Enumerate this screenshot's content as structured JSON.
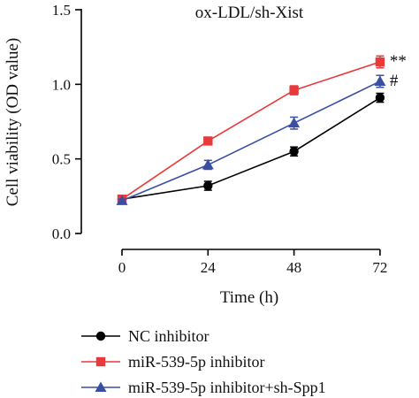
{
  "chart_data": {
    "type": "line",
    "title": "ox-LDL/sh-Xist",
    "xlabel": "Time (h)",
    "ylabel": "Cell viability (OD value)",
    "categories": [
      "0",
      "24",
      "48",
      "72"
    ],
    "x": [
      0,
      24,
      48,
      72
    ],
    "ylim": [
      0,
      1.5
    ],
    "yticks": [
      "0.0",
      "0.5",
      "1.0",
      "1.5"
    ],
    "grid": false,
    "legend_position": "bottom-left",
    "series": [
      {
        "name": "NC inhibitor",
        "color": "#000000",
        "marker": "circle",
        "values": [
          0.23,
          0.32,
          0.55,
          0.91
        ],
        "errors": [
          0.01,
          0.03,
          0.03,
          0.03
        ]
      },
      {
        "name": "miR-539-5p inhibitor",
        "color": "#e8393b",
        "marker": "square",
        "values": [
          0.23,
          0.62,
          0.96,
          1.15
        ],
        "errors": [
          0.01,
          0.01,
          0.03,
          0.04
        ]
      },
      {
        "name": "miR-539-5p inhibitor+sh-Spp1",
        "color": "#3a4fa3",
        "marker": "triangle",
        "values": [
          0.22,
          0.46,
          0.74,
          1.02
        ],
        "errors": [
          0.01,
          0.03,
          0.04,
          0.04
        ]
      }
    ],
    "annotations": [
      {
        "series": 1,
        "point": 3,
        "text": "**"
      },
      {
        "series": 2,
        "point": 3,
        "text": "#"
      }
    ]
  }
}
